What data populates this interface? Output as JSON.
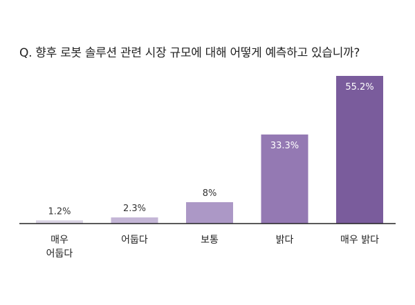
{
  "chart_data": {
    "type": "bar",
    "title": "Q. 향후 로봇 솔루션 관련 시장 규모에 대해 어떻게 예측하고 있습니까?",
    "xlabel": "",
    "ylabel": "",
    "categories": [
      [
        "매우",
        "어둡다"
      ],
      [
        "어둡다"
      ],
      [
        "보통"
      ],
      [
        "밝다"
      ],
      [
        "매우 밝다"
      ]
    ],
    "values": [
      1.2,
      2.3,
      8,
      33.3,
      55.2
    ],
    "value_labels": [
      "1.2%",
      "2.3%",
      "8%",
      "33.3%",
      "55.2%"
    ],
    "ylim": [
      0,
      55.2
    ],
    "grid": false,
    "legend": "none",
    "colors": [
      "#d9d3e3",
      "#c4b6d6",
      "#ac98c6",
      "#9479b3",
      "#7a5c9c"
    ],
    "label_colors": [
      "#333333",
      "#333333",
      "#333333",
      "#ffffff",
      "#ffffff"
    ],
    "axis_color": "#222222"
  }
}
